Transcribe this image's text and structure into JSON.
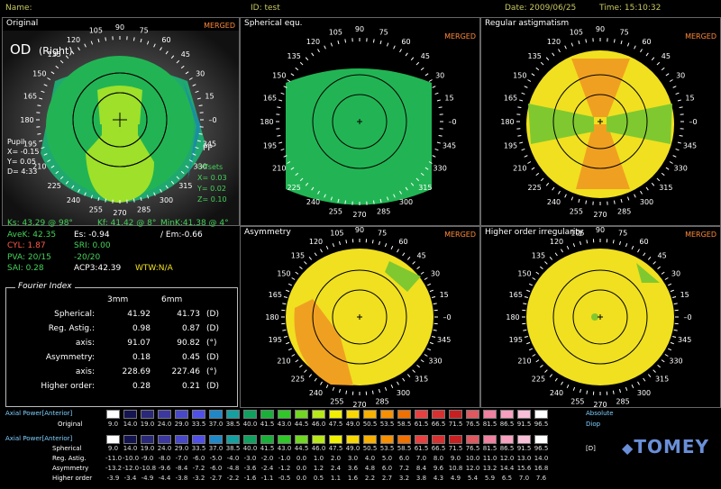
{
  "header": {
    "name_label": "Name:",
    "id_label": "ID: test",
    "date": "Date: 2009/06/25",
    "time": "Time: 15:10:32"
  },
  "panels": {
    "original": {
      "title": "Original",
      "badge": "MERGED",
      "eye": "OD",
      "eye_sub": "(Right)",
      "pp": "PP",
      "pupil": "Pupil",
      "px": "X= -0.15",
      "py": "Y=  0.05",
      "pd": "D=  4:33",
      "offsets": "Offsets",
      "ox": "X= 0.03",
      "oy": "Y= 0.02",
      "oz": "Z= 0.10"
    },
    "spherical": {
      "title": "Spherical equ.",
      "badge": "MERGED"
    },
    "regular": {
      "title": "Regular astigmatism",
      "badge": "MERGED"
    },
    "asymmetry": {
      "title": "Asymmetry",
      "badge": "MERGED"
    },
    "higher": {
      "title": "Higher order irregularity",
      "badge": "MERGED"
    }
  },
  "axis_labels": [
    "0",
    "15",
    "30",
    "45",
    "60",
    "75",
    "90",
    "105",
    "120",
    "135",
    "150",
    "165",
    "180",
    "195",
    "210",
    "225",
    "240",
    "255",
    "270",
    "285",
    "300",
    "315",
    "330",
    "345"
  ],
  "stats": {
    "ks": "Ks: 43.29 @ 98°",
    "kf": "Kf: 41.42 @  8°",
    "mink": "MinK:41.38 @  4°",
    "avek": "AveK: 42.35",
    "es": "Es: -0.94",
    "em": "/ Em:-0.66",
    "cyl": "CYL:  1.87",
    "sri": "SRI: 0.00",
    "pva": "PVA: 20/15",
    "pva2": "-20/20",
    "sai": "SAI: 0.28",
    "acp": "ACP3:42.39",
    "wtw": "WTW:N/A"
  },
  "fourier": {
    "title": "Fourier Index",
    "col1": "3mm",
    "col2": "6mm",
    "rows": [
      {
        "label": "Spherical:",
        "v1": "41.92",
        "v2": "41.73",
        "unit": "(D)"
      },
      {
        "label": "Reg. Astig.:",
        "v1": "0.98",
        "v2": "0.87",
        "unit": "(D)"
      },
      {
        "label": "axis:",
        "v1": "91.07",
        "v2": "90.82",
        "unit": "(°)"
      },
      {
        "label": "Asymmetry:",
        "v1": "0.18",
        "v2": "0.45",
        "unit": "(D)"
      },
      {
        "label": "axis:",
        "v1": "228.69",
        "v2": "227.46",
        "unit": "(°)"
      },
      {
        "label": "Higher order:",
        "v1": "0.28",
        "v2": "0.21",
        "unit": "(D)"
      }
    ]
  },
  "scale": {
    "title1": "Axial Power[Anterior]",
    "sub1": "Original",
    "title2": "Axial Power[Anterior]",
    "absolute": "Absolute",
    "diop": "Diop",
    "unit": "[D]",
    "brand": "TOMEY",
    "colors": [
      "#ffffff",
      "#141450",
      "#2a2878",
      "#3c38a0",
      "#4848c8",
      "#5050e8",
      "#1e88c8",
      "#14a0a0",
      "#10a060",
      "#18b038",
      "#30c828",
      "#70d820",
      "#b8e818",
      "#f0f000",
      "#f8d800",
      "#f8b000",
      "#f89000",
      "#f07000",
      "#e84040",
      "#d83030",
      "#c82020",
      "#e05860",
      "#f080a0",
      "#f8a0c0",
      "#f8c0d8",
      "#ffffff"
    ],
    "original": [
      "9.0",
      "14.0",
      "19.0",
      "24.0",
      "29.0",
      "33.5",
      "37.0",
      "38.5",
      "40.0",
      "41.5",
      "43.0",
      "44.5",
      "46.0",
      "47.5",
      "49.0",
      "50.5",
      "53.5",
      "58.5",
      "61.5",
      "66.5",
      "71.5",
      "76.5",
      "81.5",
      "86.5",
      "91.5",
      "96.5",
      "101.5"
    ],
    "spherical": [
      "9.0",
      "14.0",
      "19.0",
      "24.0",
      "29.0",
      "33.5",
      "37.0",
      "38.5",
      "40.0",
      "41.5",
      "43.0",
      "44.5",
      "46.0",
      "47.5",
      "49.0",
      "50.5",
      "53.5",
      "58.5",
      "61.5",
      "66.5",
      "71.5",
      "76.5",
      "81.5",
      "86.5",
      "91.5",
      "96.5",
      "101.5"
    ],
    "reg_astig": [
      "-11.0",
      "-10.0",
      "-9.0",
      "-8.0",
      "-7.0",
      "-6.0",
      "-5.0",
      "-4.0",
      "-3.0",
      "-2.0",
      "-1.0",
      "0.0",
      "1.0",
      "2.0",
      "3.0",
      "4.0",
      "5.0",
      "6.0",
      "7.0",
      "8.0",
      "9.0",
      "10.0",
      "11.0",
      "12.0",
      "13.0",
      "14.0"
    ],
    "asymmetry": [
      "-13.2",
      "-12.0",
      "-10.8",
      "-9.6",
      "-8.4",
      "-7.2",
      "-6.0",
      "-4.8",
      "-3.6",
      "-2.4",
      "-1.2",
      "0.0",
      "1.2",
      "2.4",
      "3.6",
      "4.8",
      "6.0",
      "7.2",
      "8.4",
      "9.6",
      "10.8",
      "12.0",
      "13.2",
      "14.4",
      "15.6",
      "16.8"
    ],
    "higher_order": [
      "-3.9",
      "-3.4",
      "-4.9",
      "-4.4",
      "-3.8",
      "-3.2",
      "-2.7",
      "-2.2",
      "-1.6",
      "-1.1",
      "-0.5",
      "0.0",
      "0.5",
      "1.1",
      "1.6",
      "2.2",
      "2.7",
      "3.2",
      "3.8",
      "4.3",
      "4.9",
      "5.4",
      "5.9",
      "6.5",
      "7.0",
      "7.6"
    ],
    "row_labels": {
      "spherical": "Spherical",
      "reg": "Reg. Astig.",
      "asym": "Asymmetry",
      "higher": "Higher order"
    }
  }
}
